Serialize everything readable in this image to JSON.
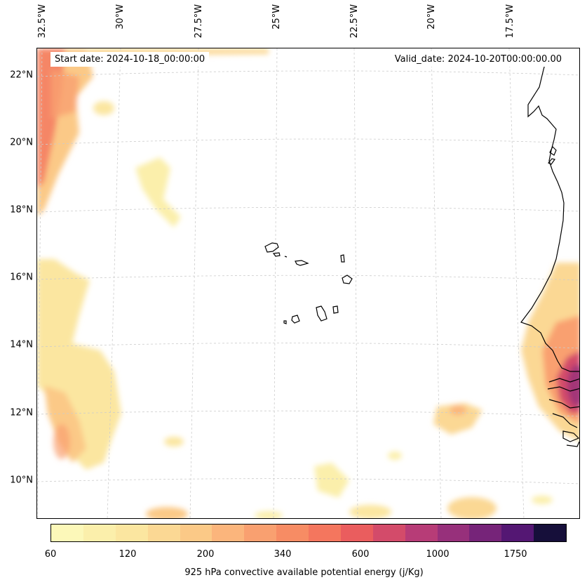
{
  "header": {
    "start_date": "Start date: 2024-10-18_00:00:00",
    "valid_date": "Valid_date: 2024-10-20T00:00:00.00"
  },
  "axes": {
    "lat_labels": [
      "22°N",
      "20°N",
      "18°N",
      "16°N",
      "14°N",
      "12°N",
      "10°N"
    ],
    "lon_labels": [
      "32.5°W",
      "30°W",
      "27.5°W",
      "25°W",
      "22.5°W",
      "20°W",
      "17.5°W"
    ]
  },
  "colorbar": {
    "label": "925 hPa convective available potential energy (j/Kg)",
    "ticks": [
      "60",
      "120",
      "200",
      "340",
      "600",
      "1000",
      "1750"
    ],
    "colors": [
      "#fcf8b9",
      "#fbefab",
      "#fbe6a0",
      "#fbd894",
      "#fbc987",
      "#fbb57c",
      "#f9a070",
      "#f78c64",
      "#f4765e",
      "#ea5d5e",
      "#d34b6a",
      "#b73c77",
      "#97307b",
      "#762479",
      "#541773",
      "#160f3a"
    ]
  },
  "map": {
    "field": "925 hPa CAPE",
    "region": "Cape Verde / West African coast",
    "background": "#ffffff",
    "coastline_color": "#000000"
  }
}
